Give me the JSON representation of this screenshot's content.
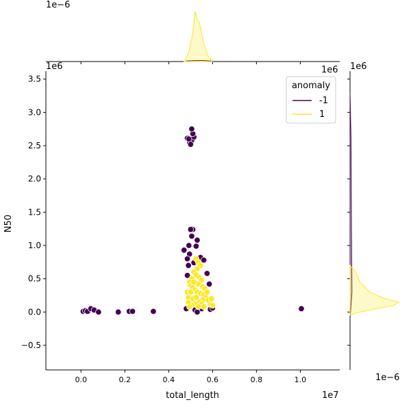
{
  "chart_data": {
    "type": "scatter",
    "title": "",
    "xlabel": "total_length",
    "ylabel": "N50",
    "x_offset_label": "1e7",
    "y_offset_label": "1e6",
    "top_marginal_offset_label": "1e−6",
    "right_marginal_offset_label_top": "1e6",
    "right_marginal_offset_label_bottom": "1e−6",
    "xlim": [
      -1.6,
      11.8
    ],
    "ylim": [
      -0.87,
      3.62
    ],
    "x_ticks": [
      0.0,
      0.2,
      0.4,
      0.6,
      0.8,
      1.0
    ],
    "x_tick_labels": [
      "0.0",
      "0.2",
      "0.4",
      "0.6",
      "0.8",
      "1.0"
    ],
    "y_ticks": [
      -0.5,
      0.0,
      0.5,
      1.0,
      1.5,
      2.0,
      2.5,
      3.0,
      3.5
    ],
    "y_tick_labels": [
      "−0.5",
      "0.0",
      "0.5",
      "1.0",
      "1.5",
      "2.0",
      "2.5",
      "3.0",
      "3.5"
    ],
    "legend": {
      "title": "anomaly",
      "placement": "top-right",
      "entries": [
        {
          "label": "-1",
          "color": "#440154"
        },
        {
          "label": "1",
          "color": "#fde725"
        }
      ]
    },
    "series": [
      {
        "name": "-1",
        "color": "#440154",
        "points": [
          [
            0.1,
            0.01
          ],
          [
            0.2,
            0.02
          ],
          [
            0.3,
            0.01
          ],
          [
            0.45,
            0.05
          ],
          [
            0.6,
            0.03
          ],
          [
            0.8,
            0.0
          ],
          [
            1.7,
            0.0
          ],
          [
            2.2,
            0.01
          ],
          [
            2.35,
            0.01
          ],
          [
            3.3,
            0.01
          ],
          [
            10.05,
            0.05
          ],
          [
            4.85,
            2.61
          ],
          [
            4.95,
            2.55
          ],
          [
            5.05,
            2.58
          ],
          [
            5.15,
            2.63
          ],
          [
            5.1,
            2.68
          ],
          [
            5.05,
            2.75
          ],
          [
            4.92,
            2.6
          ],
          [
            5.0,
            2.52
          ],
          [
            5.05,
            1.25
          ],
          [
            5.1,
            1.24
          ],
          [
            5.0,
            1.24
          ],
          [
            5.05,
            1.14
          ],
          [
            5.3,
            1.08
          ],
          [
            4.92,
            1.0
          ],
          [
            5.25,
            0.99
          ],
          [
            4.7,
            0.93
          ],
          [
            4.95,
            0.87
          ],
          [
            5.45,
            0.82
          ],
          [
            4.85,
            0.8
          ],
          [
            5.6,
            0.78
          ],
          [
            5.75,
            0.58
          ],
          [
            5.85,
            0.42
          ],
          [
            4.8,
            0.05
          ],
          [
            5.2,
            0.03
          ],
          [
            5.5,
            0.05
          ],
          [
            5.9,
            0.04
          ],
          [
            6.0,
            0.06
          ],
          [
            5.3,
            0.0
          ],
          [
            4.9,
            0.7
          ],
          [
            5.15,
            0.74
          ],
          [
            4.85,
            0.55
          ],
          [
            5.65,
            0.25
          ]
        ]
      },
      {
        "name": "1",
        "color": "#fde725",
        "points": [
          [
            5.25,
            0.8
          ],
          [
            5.35,
            0.75
          ],
          [
            5.45,
            0.7
          ],
          [
            5.3,
            0.65
          ],
          [
            5.15,
            0.6
          ],
          [
            5.25,
            0.56
          ],
          [
            5.4,
            0.52
          ],
          [
            5.5,
            0.48
          ],
          [
            5.05,
            0.5
          ],
          [
            4.95,
            0.45
          ],
          [
            5.0,
            0.4
          ],
          [
            5.1,
            0.37
          ],
          [
            5.2,
            0.33
          ],
          [
            5.3,
            0.3
          ],
          [
            5.45,
            0.28
          ],
          [
            5.6,
            0.26
          ],
          [
            5.7,
            0.22
          ],
          [
            5.55,
            0.18
          ],
          [
            5.4,
            0.15
          ],
          [
            5.2,
            0.12
          ],
          [
            5.05,
            0.1
          ],
          [
            4.9,
            0.22
          ],
          [
            4.85,
            0.3
          ],
          [
            4.9,
            0.14
          ],
          [
            5.35,
            0.42
          ],
          [
            5.55,
            0.38
          ],
          [
            5.65,
            0.35
          ],
          [
            5.75,
            0.3
          ],
          [
            5.8,
            0.18
          ],
          [
            5.9,
            0.12
          ],
          [
            6.0,
            0.1
          ],
          [
            5.95,
            0.2
          ],
          [
            5.1,
            0.2
          ],
          [
            5.25,
            0.22
          ],
          [
            5.5,
            0.12
          ],
          [
            5.15,
            0.45
          ],
          [
            5.35,
            0.08
          ],
          [
            5.6,
            0.08
          ],
          [
            5.0,
            0.3
          ],
          [
            4.95,
            0.08
          ]
        ]
      }
    ],
    "top_marginal_kde": {
      "series": [
        {
          "name": "-1",
          "color": "#440154",
          "x": [
            4.8,
            5.2,
            5.6,
            6.0
          ],
          "density": [
            0.01,
            0.02,
            0.02,
            0.01
          ]
        },
        {
          "name": "1",
          "color": "#fde725",
          "x": [
            4.7,
            4.9,
            5.1,
            5.2,
            5.3,
            5.4,
            5.5,
            5.6,
            5.8,
            6.0
          ],
          "density": [
            0.0,
            0.15,
            0.55,
            0.97,
            0.82,
            0.75,
            0.55,
            0.35,
            0.1,
            0.0
          ]
        }
      ]
    },
    "right_marginal_kde": {
      "series": [
        {
          "name": "-1",
          "color": "#440154",
          "y": [
            -0.1,
            0.3,
            1.2,
            2.6,
            3.3
          ],
          "density": [
            0.0,
            0.04,
            0.03,
            0.02,
            0.0
          ]
        },
        {
          "name": "1",
          "color": "#fde725",
          "y": [
            -0.05,
            0.0,
            0.05,
            0.1,
            0.15,
            0.2,
            0.3,
            0.45,
            0.6,
            0.7
          ],
          "density": [
            0.0,
            0.2,
            0.55,
            0.9,
            1.0,
            0.72,
            0.4,
            0.2,
            0.12,
            0.0
          ]
        }
      ]
    }
  }
}
